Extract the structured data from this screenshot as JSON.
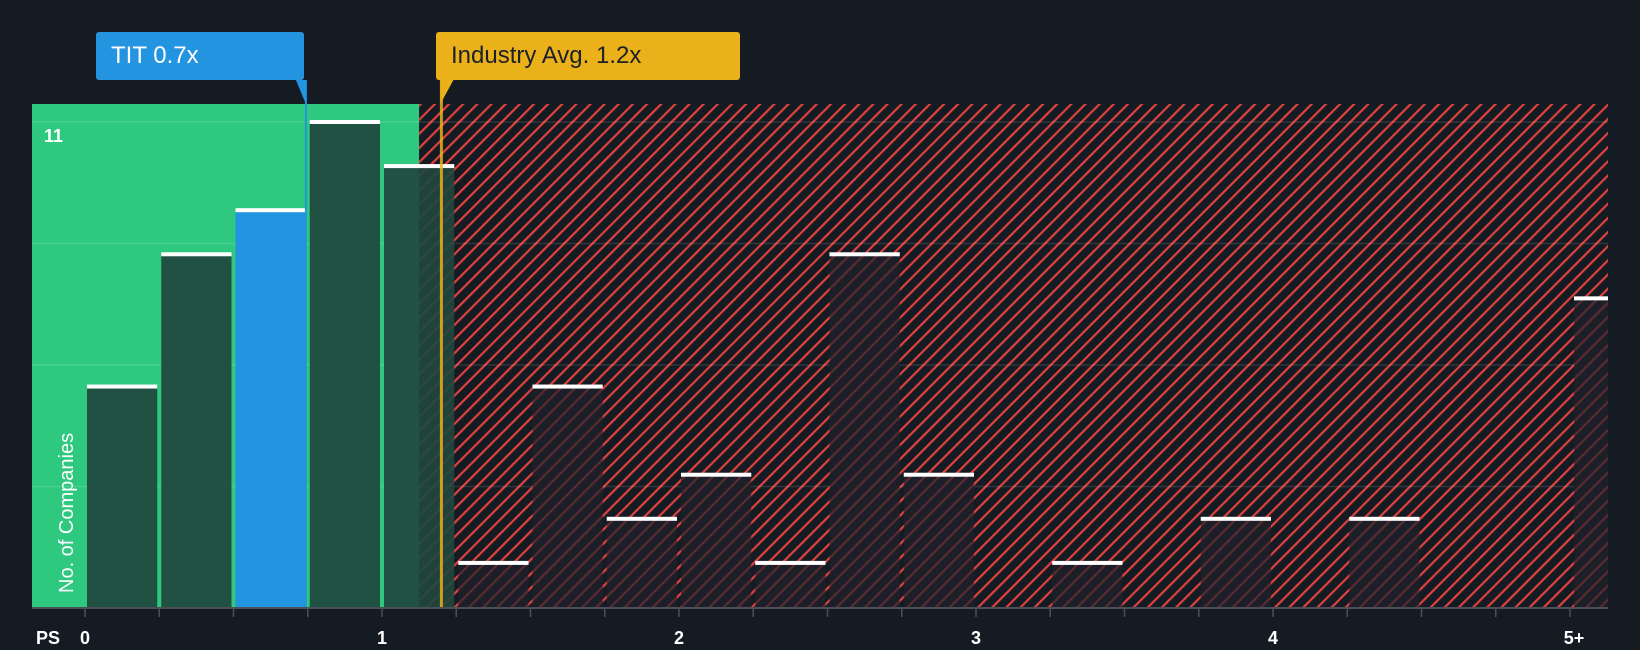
{
  "callouts": {
    "company": {
      "label": "TIT 0.7x",
      "value": 0.7,
      "color": "#2394df"
    },
    "industry": {
      "label": "Industry Avg. 1.2x",
      "value": 1.2,
      "color": "#ebb11a"
    }
  },
  "axis": {
    "x_prefix": "PS",
    "y_label": "No. of Companies",
    "y_top_label": "11",
    "x_ticks": [
      {
        "label": "0",
        "value": 0
      },
      {
        "label": "1",
        "value": 1
      },
      {
        "label": "2",
        "value": 2
      },
      {
        "label": "3",
        "value": 3
      },
      {
        "label": "4",
        "value": 4
      },
      {
        "label": "5+",
        "value": 5
      }
    ]
  },
  "colors": {
    "background": "#151b23",
    "undervalued_zone": "#2ec97f",
    "overvalued_hatch": "#e0413f",
    "bar_in_green": "#21473e",
    "bar_in_red": "#1c1f28",
    "highlight_bar": "#2394df",
    "bar_cap": "#ffffff"
  },
  "chart_data": {
    "type": "bar",
    "title": "",
    "xlabel": "PS",
    "ylabel": "No. of Companies",
    "ylim": [
      0,
      11
    ],
    "bin_width": 0.25,
    "categories": [
      "0-0.25",
      "0.25-0.5",
      "0.5-0.75",
      "0.75-1.0",
      "1.0-1.25",
      "1.25-1.5",
      "1.5-1.75",
      "1.75-2.0",
      "2.0-2.25",
      "2.25-2.5",
      "2.5-2.75",
      "2.75-3.0",
      "3.0-3.25",
      "3.25-3.5",
      "3.5-3.75",
      "3.75-4.0",
      "4.0-4.25",
      "4.25-4.5",
      "4.5-4.75",
      "4.75-5.0",
      "5+"
    ],
    "values": [
      5,
      8,
      9,
      11,
      10,
      1,
      5,
      2,
      3,
      1,
      8,
      3,
      0,
      1,
      0,
      2,
      0,
      2,
      0,
      0,
      7
    ],
    "highlight_index": 2,
    "annotations": [
      {
        "label": "TIT 0.7x",
        "x": 0.7
      },
      {
        "label": "Industry Avg. 1.2x",
        "x": 1.2
      }
    ],
    "x_tick_labels": [
      "0",
      "1",
      "2",
      "3",
      "4",
      "5+"
    ],
    "y_tick_labels": [
      "11"
    ],
    "grid": true
  }
}
